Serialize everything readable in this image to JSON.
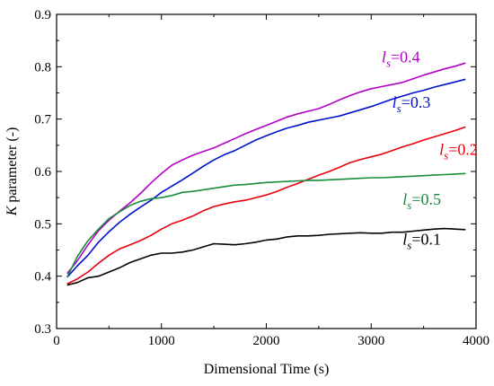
{
  "chart_data": {
    "type": "line",
    "xlabel": "Dimensional Time (s)",
    "ylabel_italic": "K",
    "ylabel_rest": " parameter (-)",
    "xlim": [
      0,
      4000
    ],
    "ylim": [
      0.3,
      0.9
    ],
    "xticks": [
      0,
      1000,
      2000,
      3000,
      4000
    ],
    "yticks": [
      0.3,
      0.4,
      0.5,
      0.6,
      0.7,
      0.8,
      0.9
    ],
    "grid": false,
    "series": [
      {
        "name_symbol": "l",
        "name_sub": "s",
        "name_value": "=0.1",
        "color": "#000000",
        "label_at": [
          3300,
          0.46
        ],
        "x": [
          100,
          200,
          300,
          400,
          500,
          600,
          700,
          800,
          900,
          1000,
          1100,
          1200,
          1300,
          1400,
          1500,
          1600,
          1700,
          1800,
          1900,
          2000,
          2100,
          2200,
          2300,
          2400,
          2500,
          2600,
          2700,
          2800,
          2900,
          3000,
          3100,
          3200,
          3300,
          3400,
          3500,
          3600,
          3700,
          3800,
          3900
        ],
        "y": [
          0.383,
          0.388,
          0.397,
          0.4,
          0.408,
          0.416,
          0.426,
          0.433,
          0.44,
          0.444,
          0.444,
          0.446,
          0.45,
          0.456,
          0.462,
          0.461,
          0.46,
          0.462,
          0.465,
          0.469,
          0.471,
          0.475,
          0.477,
          0.477,
          0.478,
          0.48,
          0.481,
          0.482,
          0.483,
          0.482,
          0.482,
          0.484,
          0.484,
          0.486,
          0.488,
          0.49,
          0.491,
          0.49,
          0.489
        ]
      },
      {
        "name_symbol": "l",
        "name_sub": "s",
        "name_value": "=0.2",
        "color": "#e8000b",
        "label_at": [
          3650,
          0.632
        ],
        "x": [
          100,
          200,
          300,
          400,
          500,
          600,
          700,
          800,
          900,
          1000,
          1100,
          1200,
          1300,
          1400,
          1500,
          1600,
          1700,
          1800,
          1900,
          2000,
          2100,
          2200,
          2300,
          2400,
          2500,
          2600,
          2700,
          2800,
          2900,
          3000,
          3100,
          3200,
          3300,
          3400,
          3500,
          3600,
          3700,
          3800,
          3900
        ],
        "y": [
          0.385,
          0.395,
          0.408,
          0.425,
          0.44,
          0.452,
          0.46,
          0.468,
          0.478,
          0.49,
          0.5,
          0.507,
          0.515,
          0.525,
          0.533,
          0.538,
          0.542,
          0.545,
          0.55,
          0.555,
          0.562,
          0.57,
          0.577,
          0.585,
          0.593,
          0.6,
          0.608,
          0.617,
          0.623,
          0.628,
          0.633,
          0.64,
          0.647,
          0.653,
          0.66,
          0.666,
          0.672,
          0.678,
          0.685
        ]
      },
      {
        "name_symbol": "l",
        "name_sub": "s",
        "name_value": "=0.3",
        "color": "#0011cc",
        "label_at": [
          3200,
          0.722
        ],
        "x": [
          100,
          200,
          300,
          400,
          500,
          600,
          700,
          800,
          900,
          1000,
          1100,
          1200,
          1300,
          1400,
          1500,
          1600,
          1700,
          1800,
          1900,
          2000,
          2100,
          2200,
          2300,
          2400,
          2500,
          2600,
          2700,
          2800,
          2900,
          3000,
          3100,
          3200,
          3300,
          3400,
          3500,
          3600,
          3700,
          3800,
          3900
        ],
        "y": [
          0.398,
          0.42,
          0.44,
          0.465,
          0.485,
          0.503,
          0.518,
          0.532,
          0.545,
          0.56,
          0.572,
          0.584,
          0.597,
          0.61,
          0.622,
          0.632,
          0.64,
          0.65,
          0.66,
          0.668,
          0.676,
          0.683,
          0.688,
          0.694,
          0.698,
          0.702,
          0.706,
          0.712,
          0.718,
          0.724,
          0.731,
          0.738,
          0.744,
          0.75,
          0.755,
          0.761,
          0.766,
          0.771,
          0.776
        ]
      },
      {
        "name_symbol": "l",
        "name_sub": "s",
        "name_value": "=0.4",
        "color": "#b400c8",
        "label_at": [
          3100,
          0.808
        ],
        "x": [
          100,
          200,
          300,
          400,
          500,
          600,
          700,
          800,
          900,
          1000,
          1100,
          1200,
          1300,
          1400,
          1500,
          1600,
          1700,
          1800,
          1900,
          2000,
          2100,
          2200,
          2300,
          2400,
          2500,
          2600,
          2700,
          2800,
          2900,
          3000,
          3100,
          3200,
          3300,
          3400,
          3500,
          3600,
          3700,
          3800,
          3900
        ],
        "y": [
          0.405,
          0.43,
          0.46,
          0.487,
          0.507,
          0.524,
          0.54,
          0.558,
          0.578,
          0.596,
          0.612,
          0.622,
          0.631,
          0.638,
          0.645,
          0.654,
          0.663,
          0.672,
          0.68,
          0.688,
          0.696,
          0.704,
          0.71,
          0.715,
          0.72,
          0.728,
          0.737,
          0.745,
          0.752,
          0.758,
          0.762,
          0.766,
          0.77,
          0.777,
          0.784,
          0.79,
          0.796,
          0.801,
          0.807
        ]
      },
      {
        "name_symbol": "l",
        "name_sub": "s",
        "name_value": "=0.5",
        "color": "#1a8c3c",
        "label_at": [
          3300,
          0.537
        ],
        "x": [
          100,
          200,
          300,
          400,
          500,
          600,
          700,
          800,
          900,
          1000,
          1100,
          1200,
          1300,
          1400,
          1500,
          1600,
          1700,
          1800,
          1900,
          2000,
          2100,
          2200,
          2300,
          2400,
          2500,
          2600,
          2700,
          2800,
          2900,
          3000,
          3100,
          3200,
          3300,
          3400,
          3500,
          3600,
          3700,
          3800,
          3900
        ],
        "y": [
          0.398,
          0.438,
          0.468,
          0.49,
          0.51,
          0.523,
          0.535,
          0.543,
          0.548,
          0.55,
          0.554,
          0.56,
          0.562,
          0.565,
          0.568,
          0.571,
          0.574,
          0.575,
          0.577,
          0.579,
          0.58,
          0.581,
          0.582,
          0.583,
          0.583,
          0.584,
          0.585,
          0.586,
          0.587,
          0.588,
          0.588,
          0.589,
          0.59,
          0.591,
          0.592,
          0.593,
          0.594,
          0.595,
          0.596
        ]
      }
    ]
  }
}
